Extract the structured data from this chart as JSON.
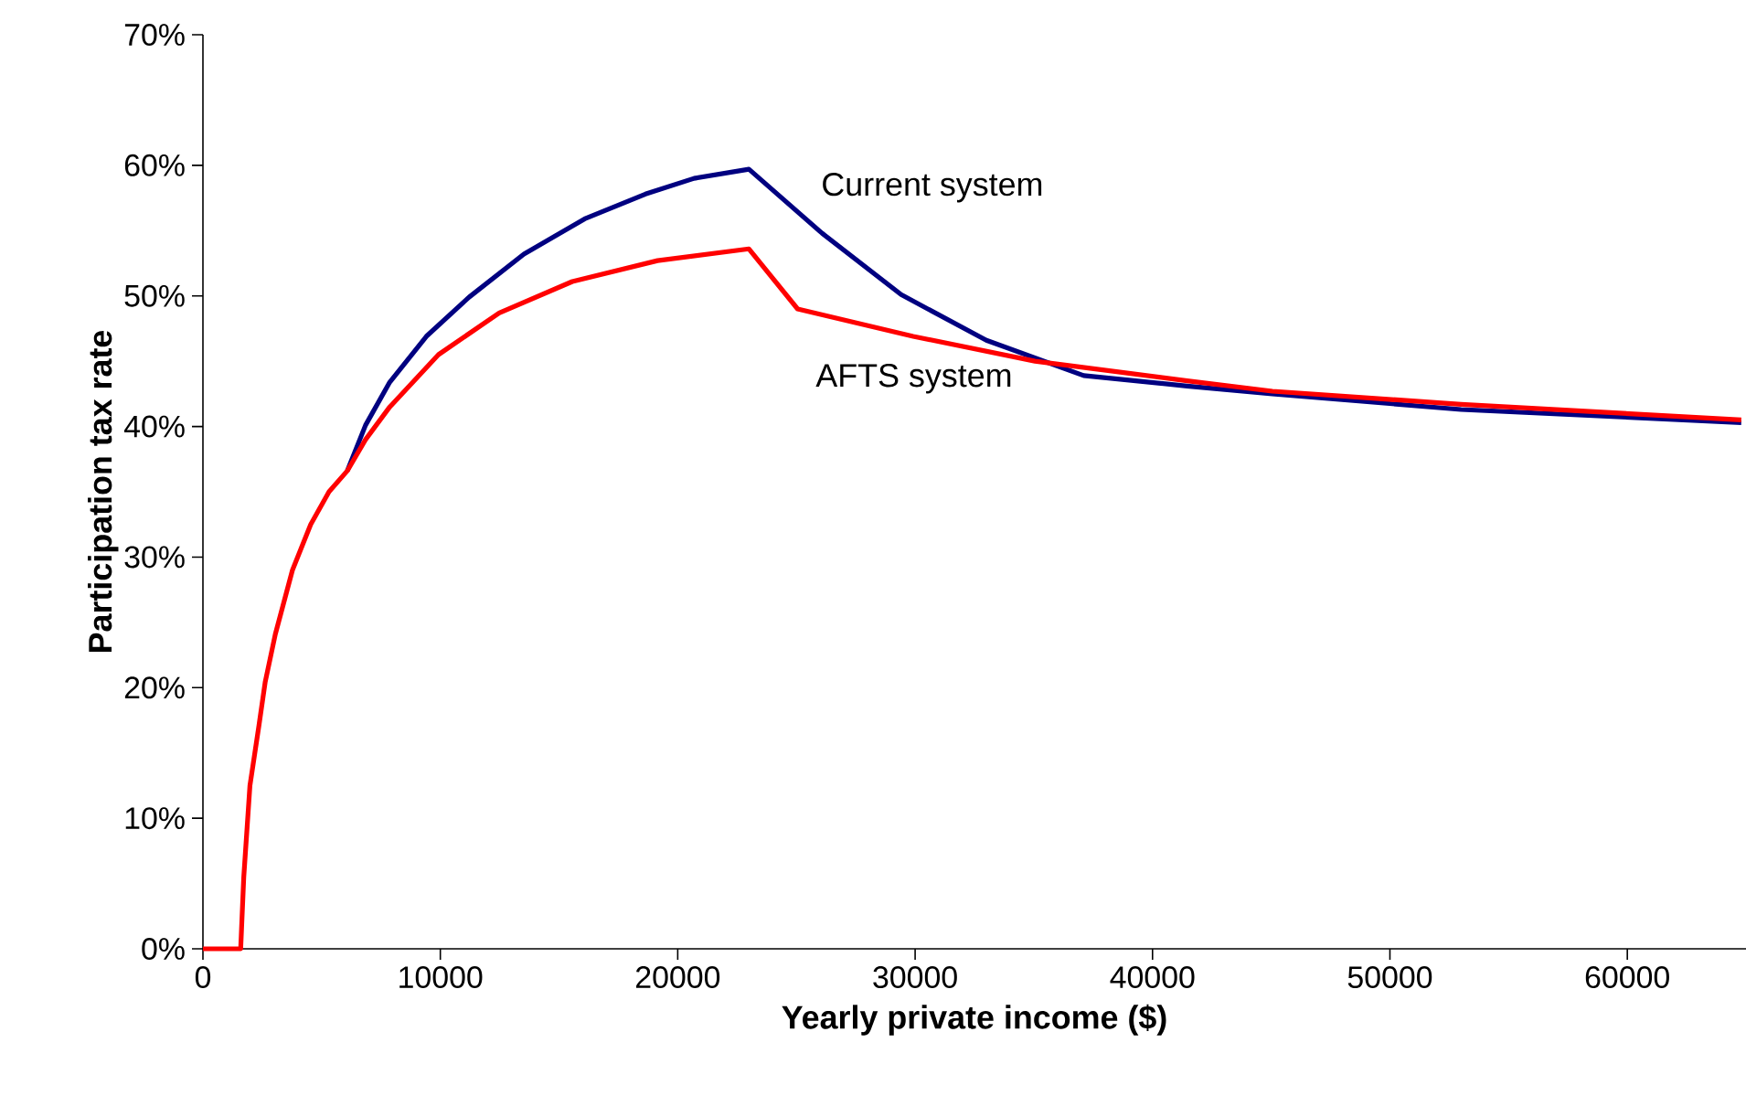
{
  "chart_data": {
    "type": "line",
    "xlabel": "Yearly private income ($)",
    "ylabel": "Participation tax rate",
    "xlim": [
      0,
      65000
    ],
    "xticks": [
      0,
      10000,
      20000,
      30000,
      40000,
      50000,
      60000
    ],
    "ylim": [
      0,
      70
    ],
    "yticks": [
      {
        "value": 0,
        "label": "0%"
      },
      {
        "value": 10,
        "label": "10%"
      },
      {
        "value": 20,
        "label": "20%"
      },
      {
        "value": 30,
        "label": "30%"
      },
      {
        "value": 40,
        "label": "40%"
      },
      {
        "value": 50,
        "label": "50%"
      },
      {
        "value": 60,
        "label": "60%"
      },
      {
        "value": 70,
        "label": "70%"
      }
    ],
    "grid": false,
    "marker": "none",
    "line_style": "solid",
    "series": [
      {
        "name": "Current system",
        "color": "#000080",
        "x": [
          6080,
          6850,
          7870,
          9410,
          11210,
          13520,
          16080,
          18640,
          20690,
          23000,
          26080,
          29410,
          33000,
          37100,
          41460,
          45050,
          53000,
          64800
        ],
        "values": [
          36.6,
          40.1,
          43.4,
          46.9,
          49.9,
          53.2,
          55.9,
          57.8,
          59.0,
          59.7,
          54.8,
          50.1,
          46.6,
          43.9,
          43.1,
          42.5,
          41.3,
          40.3
        ]
      },
      {
        "name": "AFTS system",
        "color": "#ff0000",
        "x": [
          0,
          1590,
          1720,
          1980,
          2360,
          2620,
          3050,
          3770,
          4540,
          5310,
          6080,
          6850,
          7870,
          9920,
          12480,
          15560,
          19150,
          23000,
          25050,
          29920,
          35050,
          41460,
          45050,
          53000,
          64800
        ],
        "values": [
          0,
          0,
          5.5,
          12.5,
          17.1,
          20.4,
          24.1,
          29.0,
          32.5,
          35.0,
          36.6,
          39.0,
          41.5,
          45.5,
          48.7,
          51.1,
          52.7,
          53.6,
          49.0,
          46.9,
          45.0,
          43.5,
          42.7,
          41.7,
          40.5
        ]
      }
    ]
  }
}
